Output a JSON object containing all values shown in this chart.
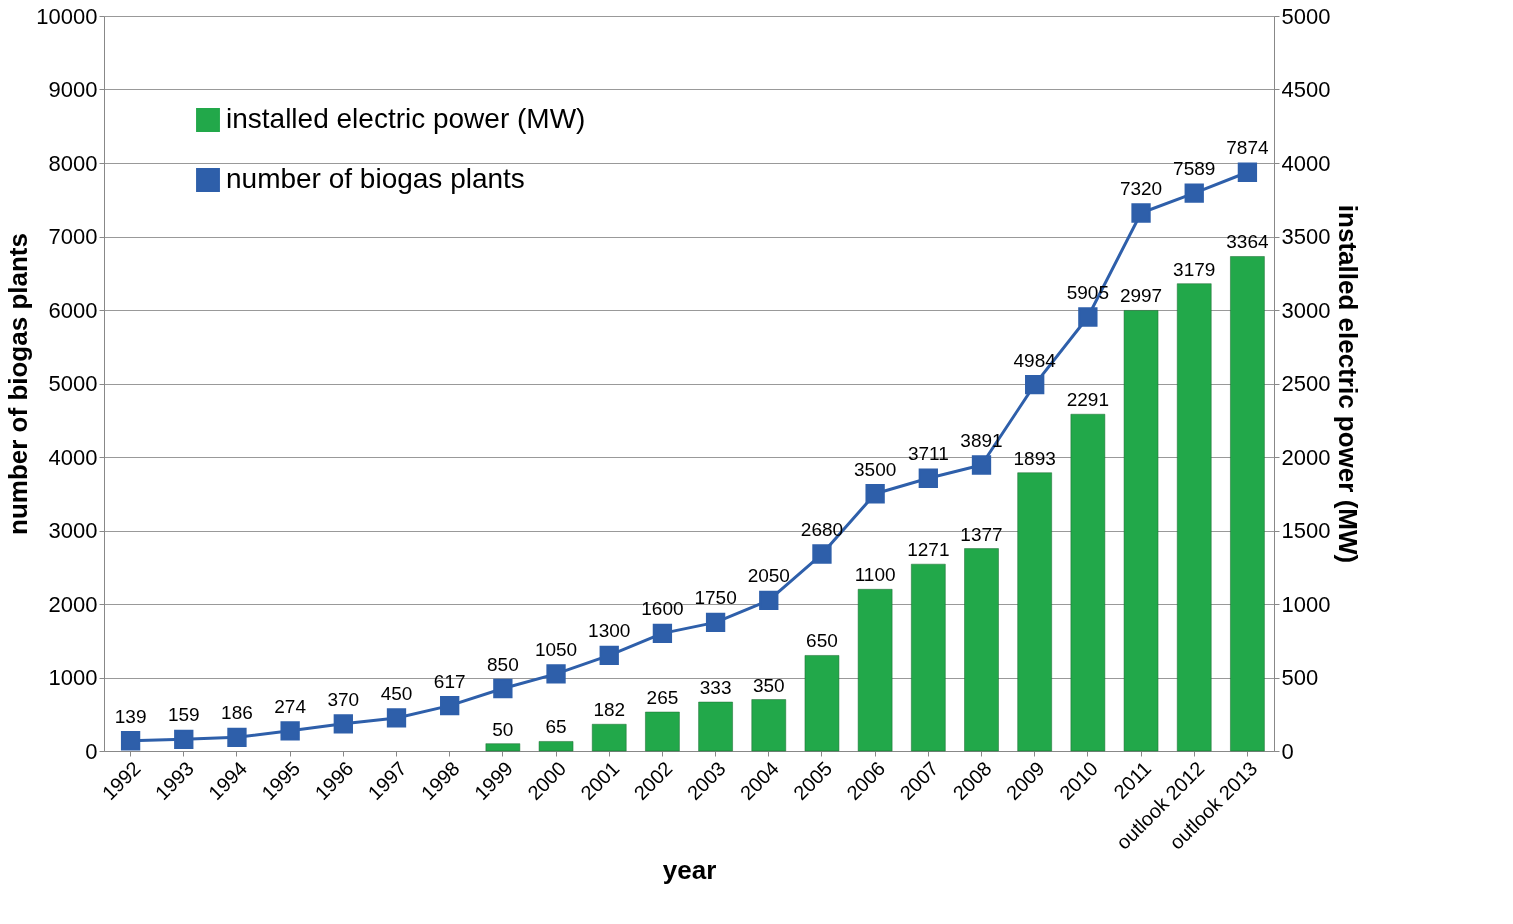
{
  "chart_data": {
    "type": "bar",
    "xlabel": "year",
    "ylabel": "number of biogas plants",
    "y2label": "installed electric power (MW)",
    "categories": [
      "1992",
      "1993",
      "1994",
      "1995",
      "1996",
      "1997",
      "1998",
      "1999",
      "2000",
      "2001",
      "2002",
      "2003",
      "2004",
      "2005",
      "2006",
      "2007",
      "2008",
      "2009",
      "2010",
      "2011",
      "outlook 2012",
      "outlook 2013"
    ],
    "series": [
      {
        "name": "installed electric power (MW)",
        "axis": "y2",
        "color": "#22a84a",
        "values": [
          null,
          null,
          null,
          null,
          null,
          null,
          null,
          50,
          65,
          182,
          265,
          333,
          350,
          650,
          1100,
          1271,
          1377,
          1893,
          2291,
          2997,
          3179,
          3364
        ]
      },
      {
        "name": "number of biogas plants",
        "type": "line",
        "color": "#2e5faa",
        "values": [
          139,
          159,
          186,
          274,
          370,
          450,
          617,
          850,
          1050,
          1300,
          1600,
          1750,
          2050,
          2680,
          3500,
          3711,
          3891,
          4984,
          5905,
          7320,
          7589,
          7874
        ]
      }
    ],
    "ylim": [
      0,
      10000
    ],
    "yticks": [
      0,
      1000,
      2000,
      3000,
      4000,
      5000,
      6000,
      7000,
      8000,
      9000,
      10000
    ],
    "y2lim": [
      0,
      5000
    ],
    "y2ticks": [
      0,
      500,
      1000,
      1500,
      2000,
      2500,
      3000,
      3500,
      4000,
      4500,
      5000
    ],
    "grid": "y",
    "legend": "top left",
    "marker": "square",
    "line_style": "solid",
    "data_labels": true
  }
}
